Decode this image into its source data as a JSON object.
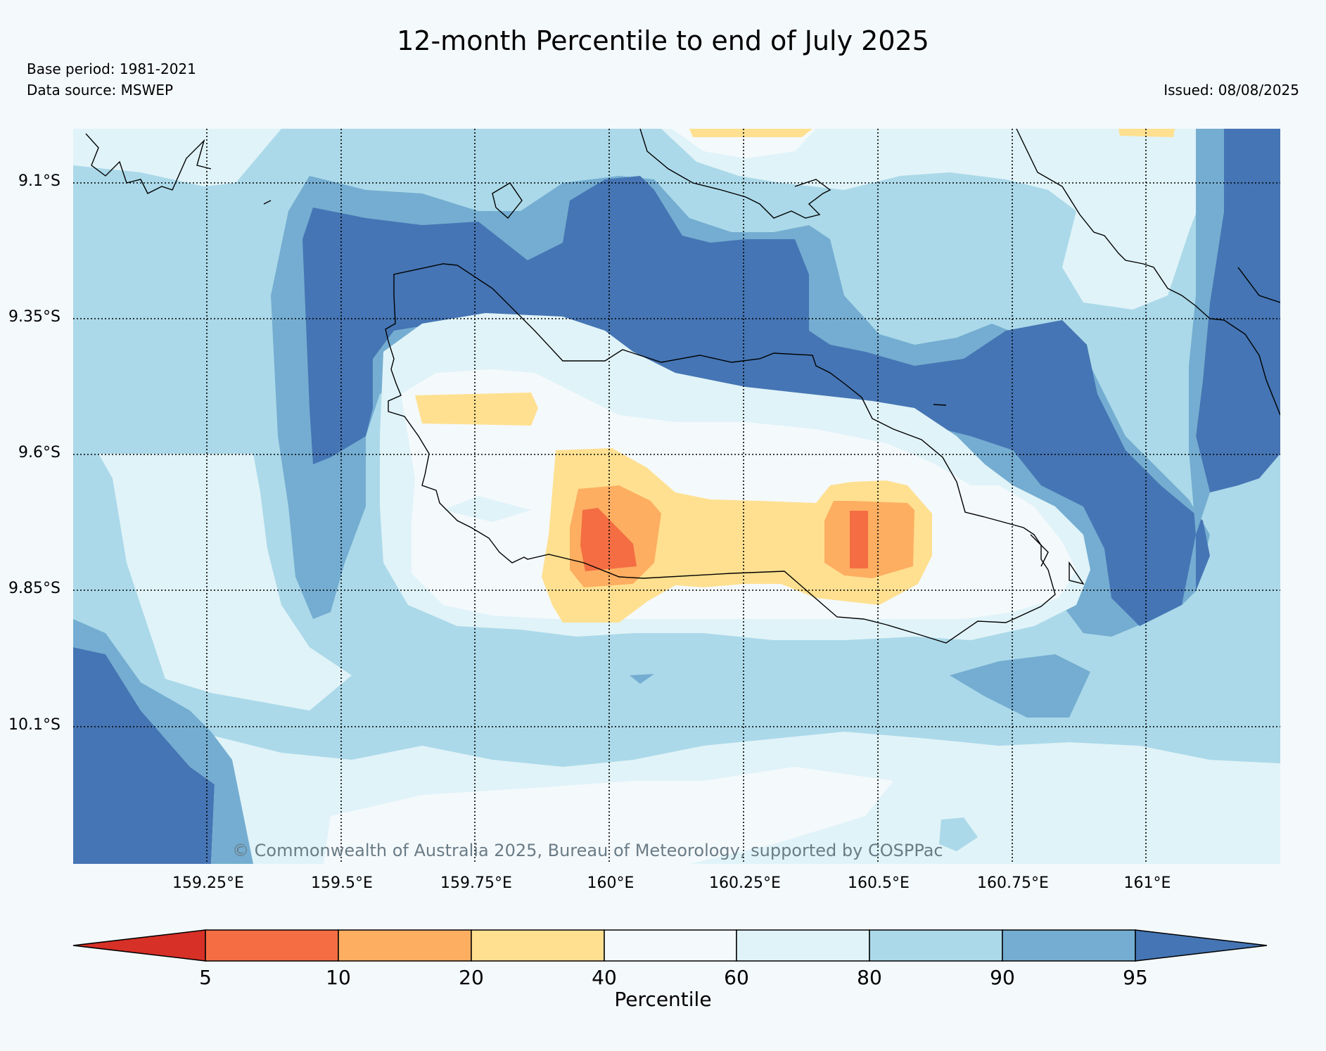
{
  "title": "12-month Percentile to end of July 2025",
  "base_period": "Base period: 1981-2021",
  "data_source": "Data source: MSWEP",
  "issued": "Issued: 08/08/2025",
  "copyright": "© Commonwealth of Australia 2025, Bureau of Meteorology, supported by COSPPac",
  "lat_labels": [
    "9.1°S",
    "9.35°S",
    "9.6°S",
    "9.85°S",
    "10.1°S"
  ],
  "lon_labels": [
    "159.25°E",
    "159.5°E",
    "159.75°E",
    "160°E",
    "160.25°E",
    "160.5°E",
    "160.75°E",
    "161°E"
  ],
  "colorbar": {
    "label": "Percentile",
    "ticks": [
      "5",
      "10",
      "20",
      "40",
      "60",
      "80",
      "90",
      "95"
    ],
    "colors": [
      "#d73027",
      "#f46d43",
      "#fdae61",
      "#fee090",
      "#f4f9fc",
      "#e0f3f8",
      "#abd9e9",
      "#74add1",
      "#4575b4"
    ]
  },
  "colors": {
    "p95_plus": "#4575b4",
    "p90_95": "#74add1",
    "p80_90": "#abd9e9",
    "p60_80": "#e0f3f8",
    "p40_60": "#f4f9fc",
    "p20_40": "#fee090",
    "p10_20": "#fdae61",
    "p5_10": "#f46d43",
    "p_below5": "#d73027"
  }
}
